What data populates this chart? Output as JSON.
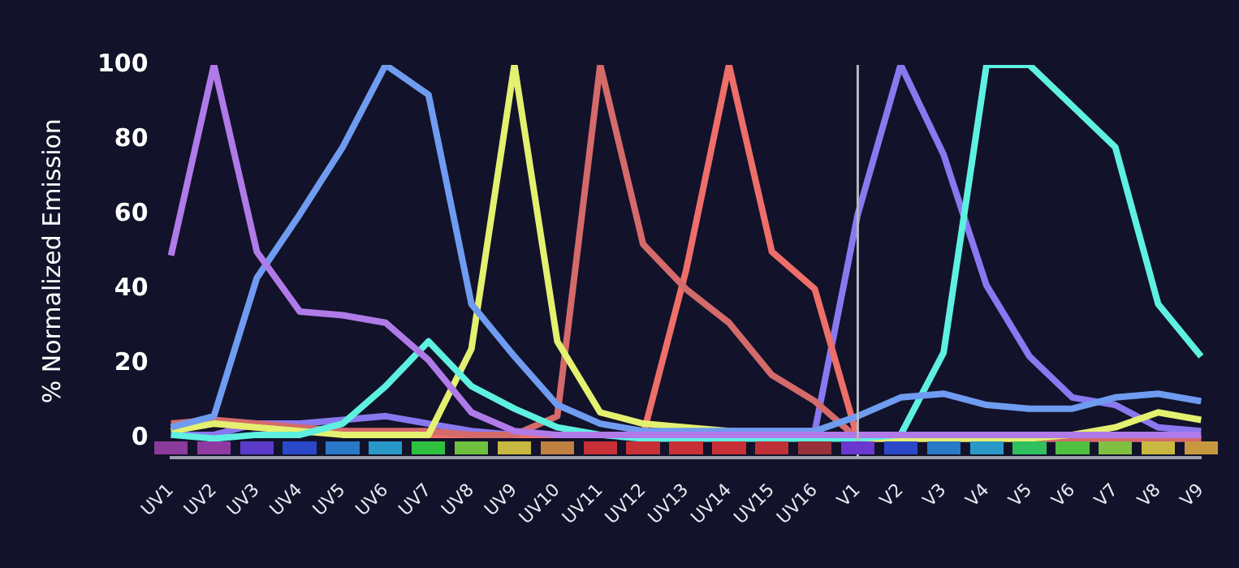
{
  "chart_data": {
    "type": "line",
    "ylabel": "% Normalized Emission",
    "categories": [
      "UV1",
      "UV2",
      "UV3",
      "UV4",
      "UV5",
      "UV6",
      "UV7",
      "UV8",
      "UV9",
      "UV10",
      "UV11",
      "UV12",
      "UV13",
      "UV14",
      "UV15",
      "UV16",
      "V1",
      "V2",
      "V3",
      "V4",
      "V5",
      "V6",
      "V7",
      "V8",
      "V9"
    ],
    "series": [
      {
        "color": "#b07ae8",
        "values": [
          49,
          100,
          50,
          34,
          33,
          31,
          21,
          7,
          2,
          1,
          1,
          1,
          1,
          1,
          1,
          1,
          1,
          1,
          1,
          1,
          1,
          1,
          1,
          1,
          1
        ]
      },
      {
        "color": "#6f9cf0",
        "values": [
          3,
          6,
          43,
          60,
          78,
          100,
          92,
          36,
          22,
          9,
          4,
          2,
          2,
          2,
          2,
          2,
          6,
          11,
          12,
          9,
          8,
          8,
          11,
          12,
          10
        ]
      },
      {
        "color": "#5ef0e0",
        "values": [
          1,
          0,
          1,
          1,
          4,
          14,
          26,
          14,
          8,
          3,
          1,
          0,
          0,
          0,
          0,
          0,
          0,
          1,
          23,
          100,
          100,
          89,
          78,
          36,
          22
        ]
      },
      {
        "color": "#e4f070",
        "values": [
          2,
          4,
          3,
          2,
          1,
          1,
          1,
          24,
          100,
          26,
          7,
          4,
          3,
          2,
          null,
          null,
          0,
          0,
          0,
          0,
          0,
          1,
          3,
          7,
          5
        ]
      },
      {
        "color": "#d46a6a",
        "values": [
          4,
          5,
          4,
          3,
          2,
          2,
          2,
          1,
          1,
          6,
          100,
          52,
          40,
          31,
          17,
          10,
          0,
          0,
          0,
          0,
          0,
          0,
          0,
          0,
          0
        ]
      },
      {
        "color": "#ee6e6a",
        "values": [
          3,
          4,
          3,
          2,
          2,
          1,
          1,
          1,
          1,
          1,
          1,
          1,
          45,
          100,
          50,
          40,
          0,
          0,
          0,
          0,
          0,
          0,
          0,
          0,
          0
        ]
      },
      {
        "color": "#8a78f0",
        "values": [
          1,
          1,
          4,
          4,
          5,
          6,
          4,
          2,
          1,
          1,
          1,
          1,
          1,
          2,
          2,
          2,
          60,
          100,
          76,
          41,
          22,
          11,
          9,
          3,
          2
        ]
      }
    ],
    "ylim": [
      -5,
      100
    ],
    "yticks": [
      0,
      20,
      40,
      60,
      80,
      100
    ],
    "grid": false,
    "legend": false,
    "marker": "none",
    "line_style": "solid",
    "ref_lines": [
      {
        "axis": "x",
        "value": "V1",
        "color": "#b8b8c0"
      }
    ]
  }
}
